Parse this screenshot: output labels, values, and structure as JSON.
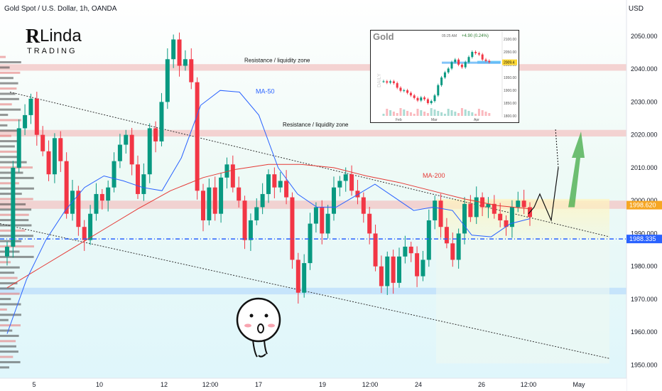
{
  "header": {
    "title": "Gold Spot / U.S. Dollar, 1h, OANDA",
    "currency": "USD"
  },
  "logo": {
    "text_main": "Linda",
    "text_sub": "TRADING"
  },
  "colors": {
    "bull": "#089981",
    "bear": "#f23645",
    "ma50": "#2962ff",
    "ma200": "#e53935",
    "resistance_band": "#f3c4c4",
    "support_band": "#bbdefb",
    "price_label_orange": "#f6a623",
    "price_label_blue": "#2962ff",
    "arrow_green": "#4caf50"
  },
  "annotations": {
    "resistance_top": "Resistance / liquidity zone",
    "resistance_mid": "Resistance / liquidity zone",
    "ma50": "MA-50",
    "ma200": "MA-200"
  },
  "price_labels": {
    "orange": "1998.620",
    "blue": "1988.335"
  },
  "inset": {
    "title": "Gold",
    "time": "05:25 AM",
    "change": "+4.90 (0.24%)",
    "side_label": "DAILY",
    "price_tag": "2009.4",
    "y_ticks": [
      "2100.00",
      "2050.00",
      "2000.00",
      "1950.00",
      "1900.00",
      "1850.00",
      "1800.00"
    ],
    "x_ticks": [
      "Feb",
      "Mar",
      "Apr"
    ]
  },
  "chart_data": {
    "type": "candlestick",
    "title": "Gold Spot / U.S. Dollar, 1h, OANDA",
    "ylim": [
      1946,
      2061
    ],
    "y_ticks": [
      1950,
      1960,
      1970,
      1980,
      1990,
      2000,
      2010,
      2020,
      2030,
      2040,
      2050
    ],
    "y_tick_labels": [
      "1950.000",
      "1960.000",
      "1970.000",
      "1980.000",
      "1990.000",
      "2000.000",
      "2010.000",
      "2020.000",
      "2030.000",
      "2040.000",
      "2050.000"
    ],
    "x_ticks": [
      "5",
      "10",
      "12",
      "12:00",
      "17",
      "19",
      "12:00",
      "24",
      "26",
      "12:00",
      "May"
    ],
    "grid": false,
    "series": [
      {
        "name": "Price",
        "points": [
          [
            1983,
            1986
          ],
          [
            1986,
            2010
          ],
          [
            2010,
            2022
          ],
          [
            2022,
            2026
          ],
          [
            2026,
            2031
          ],
          [
            2031,
            2020
          ],
          [
            2020,
            2015
          ],
          [
            2015,
            2008
          ],
          [
            2008,
            2019
          ],
          [
            2019,
            2012
          ],
          [
            2012,
            1996
          ],
          [
            1996,
            2003
          ],
          [
            2003,
            1992
          ],
          [
            1992,
            1988
          ],
          [
            1988,
            1996
          ],
          [
            1996,
            2002
          ],
          [
            2002,
            2000
          ],
          [
            2000,
            2004
          ],
          [
            2004,
            2012
          ],
          [
            2012,
            2017
          ],
          [
            2017,
            2020
          ],
          [
            2020,
            2011
          ],
          [
            2011,
            2002
          ],
          [
            2002,
            2008
          ],
          [
            2008,
            2022
          ],
          [
            2022,
            2018
          ],
          [
            2018,
            2030
          ],
          [
            2030,
            2043
          ],
          [
            2043,
            2049
          ],
          [
            2049,
            2041
          ],
          [
            2041,
            2043
          ],
          [
            2043,
            2036
          ],
          [
            2036,
            2003
          ],
          [
            2003,
            1994
          ],
          [
            1994,
            2004
          ],
          [
            2004,
            1996
          ],
          [
            1996,
            2007
          ],
          [
            2007,
            2011
          ],
          [
            2011,
            2004
          ],
          [
            2004,
            2000
          ],
          [
            2000,
            1988
          ],
          [
            1988,
            1994
          ],
          [
            1994,
            1998
          ],
          [
            1998,
            2002
          ],
          [
            2002,
            2008
          ],
          [
            2008,
            2004
          ],
          [
            2004,
            2006
          ],
          [
            2006,
            2001
          ],
          [
            2001,
            1982
          ],
          [
            1982,
            1972
          ],
          [
            1972,
            1981
          ],
          [
            1981,
            1993
          ],
          [
            1993,
            1998
          ],
          [
            1998,
            1990
          ],
          [
            1990,
            1996
          ],
          [
            1996,
            2004
          ],
          [
            2004,
            2006
          ],
          [
            2006,
            2008
          ],
          [
            2008,
            2003
          ],
          [
            2003,
            2001
          ],
          [
            2001,
            1996
          ],
          [
            1996,
            1990
          ],
          [
            1990,
            1980
          ],
          [
            1980,
            1974
          ],
          [
            1974,
            1983
          ],
          [
            1983,
            1975
          ],
          [
            1975,
            1983
          ],
          [
            1983,
            1986
          ],
          [
            1986,
            1984
          ],
          [
            1984,
            1977
          ],
          [
            1977,
            1982
          ],
          [
            1982,
            1994
          ],
          [
            1994,
            2000
          ],
          [
            2000,
            1992
          ],
          [
            1992,
            1987
          ],
          [
            1987,
            1982
          ],
          [
            1982,
            1990
          ],
          [
            1990,
            1999
          ],
          [
            1999,
            1995
          ],
          [
            1995,
            2001
          ],
          [
            2001,
            1998
          ],
          [
            1998,
            1999
          ],
          [
            1999,
            1996
          ],
          [
            1996,
            1994
          ],
          [
            1994,
            1992
          ],
          [
            1992,
            1998
          ],
          [
            1998,
            2000
          ],
          [
            2000,
            1998
          ],
          [
            1998,
            1995
          ]
        ]
      },
      {
        "name": "MA-50",
        "points": [
          [
            1958,
            1961
          ],
          [
            1964,
            1988
          ],
          [
            1978,
            1998
          ],
          [
            1990,
            2004
          ],
          [
            2000,
            2008
          ],
          [
            2006,
            2009
          ],
          [
            2005,
            2007
          ],
          [
            2004,
            2004
          ],
          [
            2004,
            2002
          ],
          [
            2010,
            2016
          ],
          [
            2024,
            2034
          ],
          [
            2032,
            2035
          ],
          [
            2034,
            2032
          ],
          [
            2030,
            2022
          ],
          [
            2016,
            2004
          ],
          [
            2006,
            1998
          ],
          [
            1999,
            1997
          ],
          [
            1997,
            1999
          ],
          [
            2000,
            2003
          ],
          [
            2006,
            2004
          ],
          [
            2003,
            1999
          ],
          [
            1997,
            1997
          ],
          [
            1998,
            1998
          ],
          [
            1997,
            1997
          ],
          [
            1990,
            1989
          ],
          [
            1988,
            1990
          ],
          [
            1992,
            1994
          ],
          [
            1995,
            1994
          ]
        ]
      },
      {
        "name": "MA-200",
        "points": [
          [
            1972,
            1975
          ],
          [
            1978,
            1981
          ],
          [
            1984,
            1987
          ],
          [
            1990,
            1993
          ],
          [
            1996,
            1999
          ],
          [
            2002,
            2004
          ],
          [
            2006,
            2008
          ],
          [
            2009,
            2010
          ],
          [
            2011,
            2011
          ],
          [
            2011,
            2011
          ],
          [
            2010,
            2010
          ],
          [
            2008,
            2007
          ],
          [
            2006,
            2005
          ],
          [
            2004,
            2002
          ],
          [
            2001,
            2000
          ],
          [
            1999,
            1998
          ],
          [
            1998,
            1997
          ]
        ]
      }
    ],
    "annotations": [
      {
        "text": "Resistance / liquidity zone",
        "y": 2040
      },
      {
        "text": "Resistance / liquidity zone",
        "y": 2021
      },
      {
        "text": "MA-50"
      },
      {
        "text": "MA-200"
      }
    ],
    "zones": [
      {
        "type": "resistance",
        "from": 2039.5,
        "to": 2041.5
      },
      {
        "type": "resistance",
        "from": 2019.5,
        "to": 2021.5
      },
      {
        "type": "resistance",
        "from": 1997.5,
        "to": 2000.0
      },
      {
        "type": "support",
        "from": 1971.5,
        "to": 1973.5
      }
    ],
    "horizontal_lines": [
      1988.335
    ]
  }
}
